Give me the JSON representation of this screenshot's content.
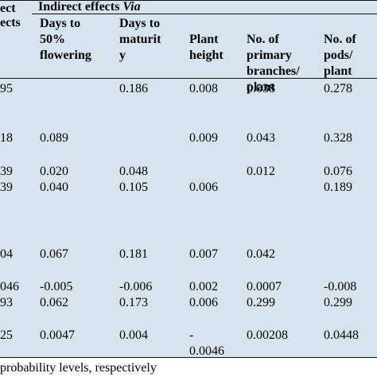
{
  "header": {
    "col0": [
      "ect",
      "ects"
    ],
    "group_title": "Indirect effects",
    "group_title_via": "Via",
    "columns": [
      [
        "Days to",
        "50%",
        "flowering"
      ],
      [
        "Days to",
        "maturit",
        "y"
      ],
      [
        "Plant",
        "height"
      ],
      [
        "No. of",
        "primary",
        "branches/",
        "plant"
      ],
      [
        "No. of",
        "pods/",
        "plant"
      ]
    ]
  },
  "rows": [
    {
      "direct": "95",
      "c1": "",
      "c2": "0.186",
      "c3": "0.008",
      "c4": "0.038",
      "c5": "0.278"
    },
    {
      "direct": "18",
      "c1": "0.089",
      "c2": "",
      "c3": "0.009",
      "c4": "0.043",
      "c5": "0.328"
    },
    {
      "direct": "39",
      "c1": "0.020",
      "c2": "0.048",
      "c3": "",
      "c4": "0.012",
      "c5": "0.076"
    },
    {
      "direct": "39",
      "c1": "0.040",
      "c2": "0.105",
      "c3": "0.006",
      "c4": "",
      "c5": "0.189"
    },
    {
      "direct": "04",
      "c1": "0.067",
      "c2": "0.181",
      "c3": "0.007",
      "c4": "0.042",
      "c5": ""
    },
    {
      "direct": "046",
      "c1": "-0.005",
      "c2": "-0.006",
      "c3": "0.002",
      "c4": "0.0007",
      "c5": "-0.008"
    },
    {
      "direct": "93",
      "c1": "0.062",
      "c2": "0.173",
      "c3": "0.006",
      "c4": "0.299",
      "c5": "0.299"
    },
    {
      "direct": "25",
      "c1": "0.0047",
      "c2": "0.004",
      "c3": "-",
      "c3b": "0.0046",
      "c4": "0.00208",
      "c5": "0.0448"
    }
  ],
  "footnote": "probability levels, respectively"
}
